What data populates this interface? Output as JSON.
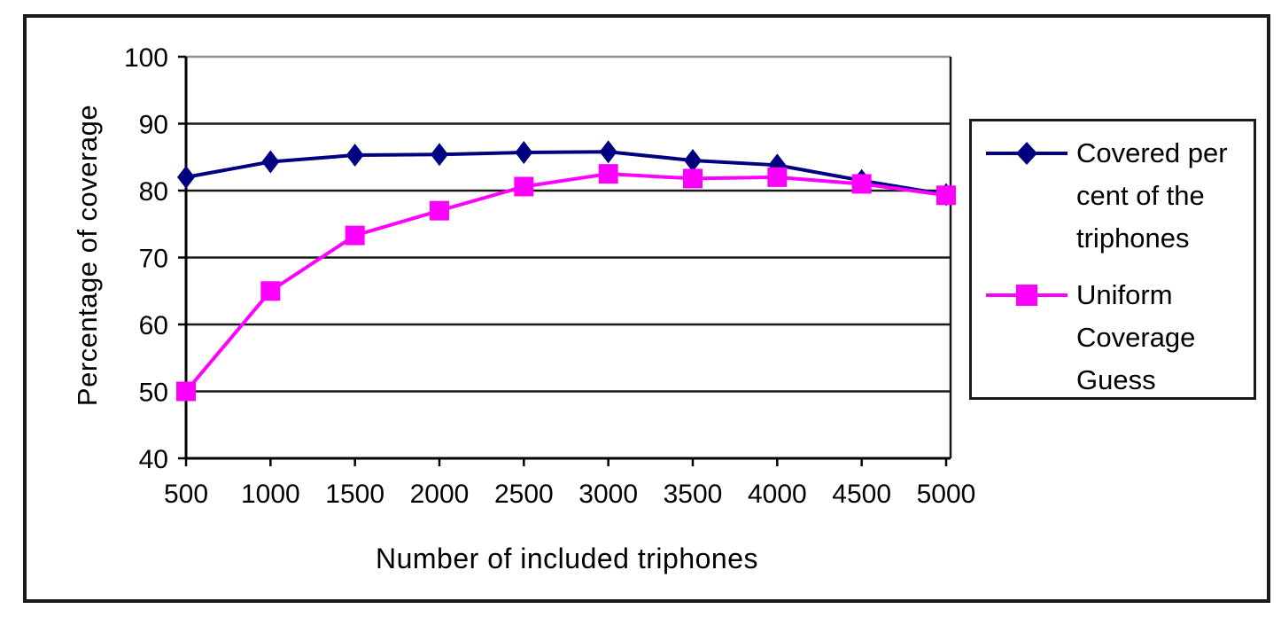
{
  "chart_data": {
    "type": "line",
    "xlabel": "Number of included triphones",
    "ylabel": "Percentage of coverage",
    "x_categories": [
      "500",
      "1000",
      "1500",
      "2000",
      "2500",
      "3000",
      "3500",
      "4000",
      "4500",
      "5000"
    ],
    "ylim": [
      40,
      100
    ],
    "ytick_step": 10,
    "grid": "horizontal",
    "legend_position": "right",
    "series": [
      {
        "name": "Covered per cent of the triphones",
        "marker": "diamond",
        "color": "#000080",
        "values": [
          82.0,
          84.3,
          85.3,
          85.4,
          85.7,
          85.8,
          84.5,
          83.8,
          81.5,
          79.4
        ]
      },
      {
        "name": "Uniform Coverage Guess",
        "marker": "square",
        "color": "#FF00FF",
        "values": [
          50.0,
          65.0,
          73.3,
          77.0,
          80.6,
          82.5,
          81.8,
          82.0,
          81.0,
          79.3
        ]
      }
    ],
    "colors": {
      "plot_border_top": "#909090",
      "axis": "#000000",
      "gridline": "#1a1a1a",
      "background": "#ffffff"
    }
  }
}
